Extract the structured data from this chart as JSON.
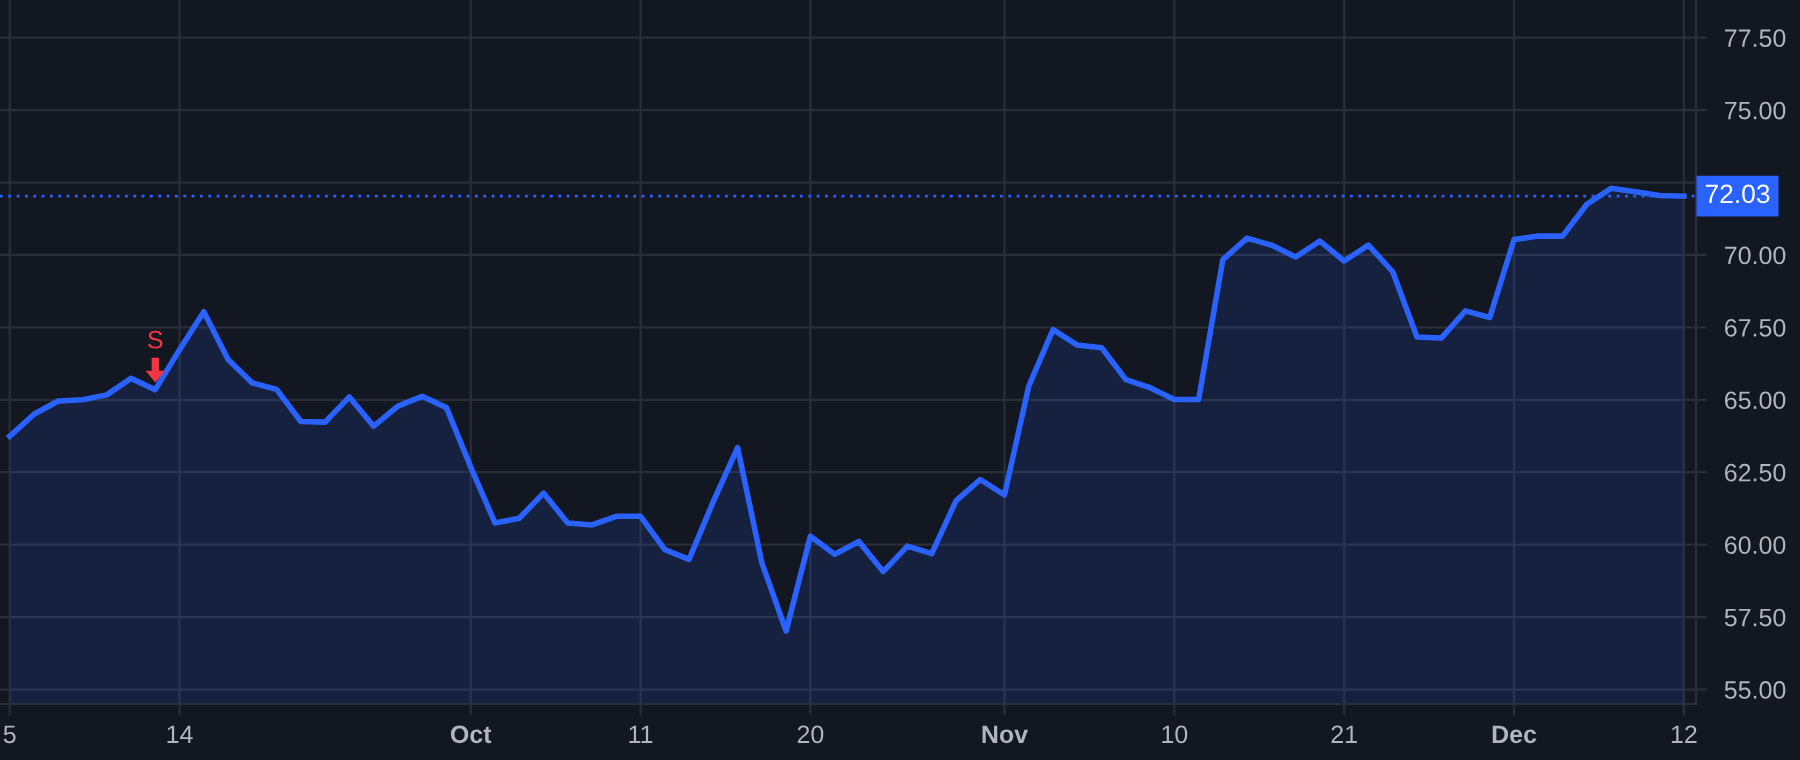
{
  "chart_data": {
    "type": "area",
    "categories": [
      "5",
      null,
      null,
      null,
      null,
      null,
      null,
      "14",
      null,
      null,
      null,
      null,
      null,
      null,
      null,
      null,
      null,
      null,
      null,
      "Oct",
      null,
      null,
      null,
      null,
      null,
      null,
      "11",
      null,
      null,
      null,
      null,
      null,
      null,
      "20",
      null,
      null,
      null,
      null,
      null,
      null,
      null,
      "Nov",
      null,
      null,
      null,
      null,
      null,
      null,
      "10",
      null,
      null,
      null,
      null,
      null,
      null,
      "21",
      null,
      null,
      null,
      null,
      null,
      null,
      "Dec",
      null,
      null,
      null,
      null,
      null,
      null,
      "12"
    ],
    "series": [
      {
        "color": "#2962ff",
        "values": [
          63.74,
          64.5,
          64.96,
          65.0,
          65.17,
          65.74,
          65.35,
          66.73,
          68.04,
          66.39,
          65.58,
          65.36,
          64.25,
          64.23,
          65.1,
          64.09,
          64.78,
          65.12,
          64.73,
          62.68,
          60.75,
          60.91,
          61.78,
          60.75,
          60.68,
          60.98,
          60.98,
          59.83,
          59.49,
          61.49,
          63.35,
          59.37,
          57.02,
          60.29,
          59.67,
          60.11,
          59.07,
          59.95,
          59.69,
          61.51,
          62.25,
          61.72,
          65.47,
          67.42,
          66.89,
          66.8,
          65.7,
          65.42,
          65.01,
          65.01,
          69.84,
          70.58,
          70.34,
          69.93,
          70.48,
          69.79,
          70.34,
          69.42,
          67.17,
          67.13,
          68.07,
          67.84,
          70.53,
          70.65,
          70.65,
          71.75,
          72.3,
          72.18,
          72.05,
          72.03
        ]
      }
    ],
    "ylim": [
      54.5,
      78.8
    ],
    "yticks": [
      {
        "value": 55,
        "label": "55.00"
      },
      {
        "value": 57.5,
        "label": "57.50"
      },
      {
        "value": 60,
        "label": "60.00"
      },
      {
        "value": 62.5,
        "label": "62.50"
      },
      {
        "value": 65,
        "label": "65.00"
      },
      {
        "value": 67.5,
        "label": "67.50"
      },
      {
        "value": 70,
        "label": "70.00"
      },
      {
        "value": 72.5,
        "label": null
      },
      {
        "value": 75,
        "label": "75.00"
      },
      {
        "value": 77.5,
        "label": "77.50"
      }
    ],
    "grid": true,
    "ref_lines": [
      {
        "axis": "y",
        "value": 72.03,
        "label": "72.03",
        "color": "#2962ff",
        "line_style": "dotted"
      }
    ],
    "annotations": [
      {
        "text": "S",
        "y": 65.35
      }
    ]
  }
}
